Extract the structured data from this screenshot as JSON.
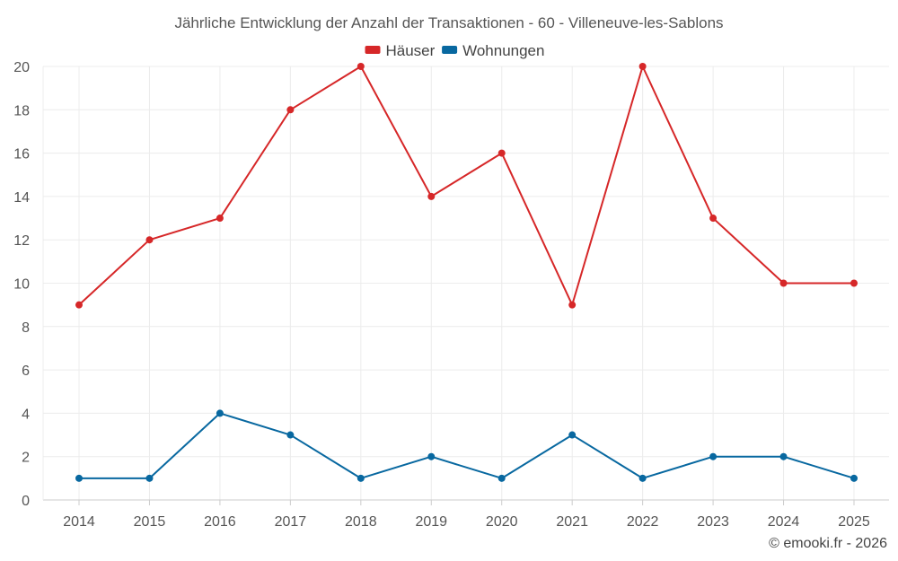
{
  "chart_data": {
    "type": "line",
    "title": "Jährliche Entwicklung der Anzahl der Transaktionen - 60 - Villeneuve-les-Sablons",
    "xlabel": "",
    "ylabel": "",
    "x": [
      "2014",
      "2015",
      "2016",
      "2017",
      "2018",
      "2019",
      "2020",
      "2021",
      "2022",
      "2023",
      "2024",
      "2025"
    ],
    "ylim": [
      0,
      20
    ],
    "yticks": [
      0,
      2,
      4,
      6,
      8,
      10,
      12,
      14,
      16,
      18,
      20
    ],
    "grid": true,
    "legend_position": "top-center",
    "series": [
      {
        "name": "Häuser",
        "color": "#d62728",
        "values": [
          9,
          12,
          13,
          18,
          20,
          14,
          16,
          9,
          20,
          13,
          10,
          10
        ]
      },
      {
        "name": "Wohnungen",
        "color": "#0868a0",
        "values": [
          1,
          1,
          4,
          3,
          1,
          2,
          1,
          3,
          1,
          2,
          2,
          1
        ]
      }
    ]
  },
  "credit": "© emooki.fr - 2026"
}
